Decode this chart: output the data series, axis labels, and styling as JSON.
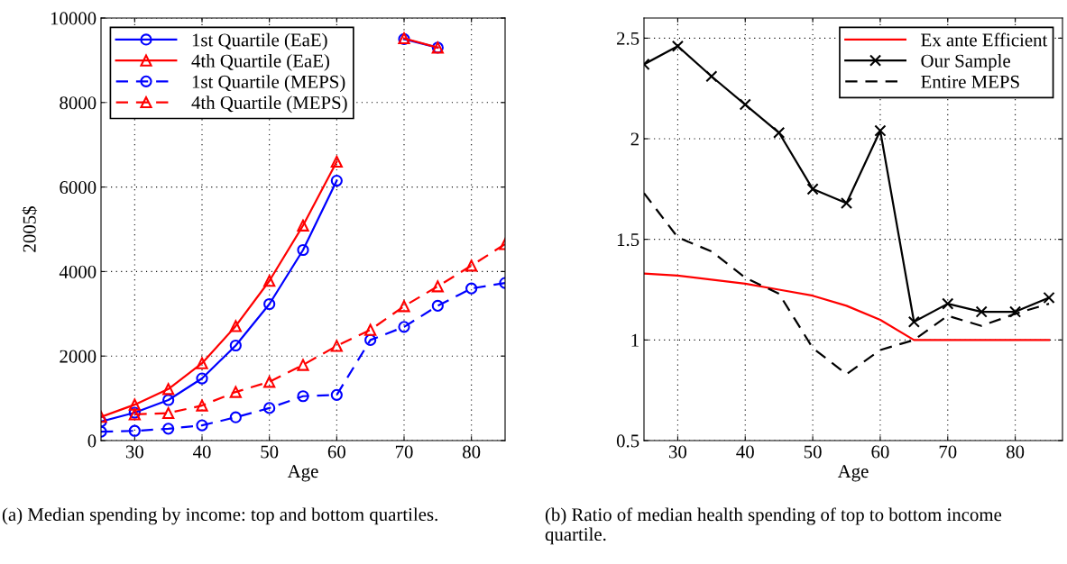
{
  "chart_data": [
    {
      "type": "line",
      "xlabel": "Age",
      "ylabel": "2005$",
      "x": [
        25,
        30,
        35,
        40,
        45,
        50,
        55,
        60,
        65,
        70,
        75,
        80,
        85
      ],
      "xlim": [
        25,
        85
      ],
      "xticks": [
        30,
        40,
        50,
        60,
        70,
        80
      ],
      "ylim": [
        0,
        10000
      ],
      "yticks": [
        0,
        2000,
        4000,
        6000,
        8000,
        10000
      ],
      "grid": true,
      "legend": "top left",
      "series": [
        {
          "name": "1st Quartile (EaE)",
          "color": "#0000ff",
          "marker": "circle",
          "line_style": "solid",
          "values": [
            450,
            660,
            960,
            1470,
            2250,
            3230,
            4510,
            6150,
            null,
            9500,
            9300,
            null,
            null
          ]
        },
        {
          "name": "4th Quartile (EaE)",
          "color": "#ff0000",
          "marker": "triangle",
          "line_style": "solid",
          "values": [
            560,
            850,
            1220,
            1830,
            2710,
            3780,
            5090,
            6600,
            null,
            9520,
            9300,
            null,
            null
          ]
        },
        {
          "name": "1st Quartile (MEPS)",
          "color": "#0000ff",
          "marker": "circle",
          "line_style": "dashed",
          "values": [
            210,
            230,
            280,
            360,
            550,
            770,
            1050,
            1080,
            2380,
            2690,
            3190,
            3600,
            3730
          ]
        },
        {
          "name": "4th Quartile (MEPS)",
          "color": "#ff0000",
          "marker": "triangle",
          "line_style": "dashed",
          "values": [
            null,
            620,
            650,
            830,
            1150,
            1390,
            1790,
            2240,
            2620,
            3180,
            3650,
            4140,
            4650
          ]
        }
      ],
      "annotations": [
        "(a) Median spending by income: top and bottom quartiles."
      ]
    },
    {
      "type": "line",
      "xlabel": "Age",
      "x": [
        25,
        30,
        35,
        40,
        45,
        50,
        55,
        60,
        65,
        70,
        75,
        80,
        85
      ],
      "xlim": [
        25,
        87
      ],
      "xticks": [
        30,
        40,
        50,
        60,
        70,
        80
      ],
      "ylim": [
        0.5,
        2.6
      ],
      "yticks": [
        0.5,
        1,
        1.5,
        2,
        2.5
      ],
      "grid": true,
      "legend": "top right",
      "series": [
        {
          "name": "Ex ante Efficient",
          "color": "#ff0000",
          "marker": "none",
          "line_style": "solid",
          "values": [
            1.33,
            1.32,
            1.3,
            1.28,
            1.25,
            1.22,
            1.17,
            1.1,
            1.0,
            1.0,
            1.0,
            1.0,
            1.0
          ]
        },
        {
          "name": "Our Sample",
          "color": "#000000",
          "marker": "cross",
          "line_style": "solid",
          "values": [
            2.37,
            2.46,
            2.31,
            2.17,
            2.03,
            1.75,
            1.68,
            2.04,
            1.09,
            1.18,
            1.14,
            1.14,
            1.21
          ]
        },
        {
          "name": "Entire MEPS",
          "color": "#000000",
          "marker": "none",
          "line_style": "dashed",
          "values": [
            1.73,
            1.51,
            1.44,
            1.31,
            1.23,
            0.96,
            0.83,
            0.95,
            1.0,
            1.12,
            1.07,
            1.13,
            1.18
          ]
        }
      ],
      "annotations": [
        "(b) Ratio of median health spending of top to bottom income quartile."
      ]
    }
  ]
}
